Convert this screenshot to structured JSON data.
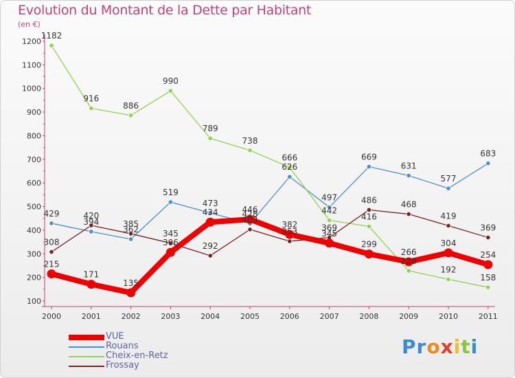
{
  "title": "Evolution du Montant de la Dette par Habitant",
  "unit_label": "(en €)",
  "logo": {
    "letters": [
      "P",
      "r",
      "o",
      "x",
      "i",
      "t",
      "i"
    ],
    "colors": [
      "#3a8ad4",
      "#3a8ad4",
      "#f08a1c",
      "#e0402a",
      "#f0c020",
      "#8cc63f",
      "#3a8ad4"
    ]
  },
  "chart_data": {
    "type": "line",
    "title": "Evolution du Montant de la Dette par Habitant",
    "ylabel": "(en €)",
    "x": [
      "2000",
      "2001",
      "2002",
      "2003",
      "2004",
      "2005",
      "2006",
      "2007",
      "2008",
      "2009",
      "2010",
      "2011"
    ],
    "ylim": [
      100,
      1200
    ],
    "yticks": [
      100,
      200,
      300,
      400,
      500,
      600,
      700,
      800,
      900,
      1000,
      1100,
      1200
    ],
    "grid": false,
    "legend_position": "bottom-left",
    "series": [
      {
        "name": "VUE",
        "color": "#ee0000",
        "values": [
          215,
          171,
          135,
          306,
          434,
          446,
          382,
          345,
          299,
          266,
          304,
          254
        ]
      },
      {
        "name": "Rouans",
        "color": "#4d8ec9",
        "values": [
          429,
          394,
          362,
          519,
          473,
          428,
          626,
          497,
          669,
          631,
          577,
          683
        ]
      },
      {
        "name": "Cheix-en-Retz",
        "color": "#8fd44a",
        "values": [
          1182,
          916,
          886,
          990,
          789,
          738,
          666,
          442,
          416,
          228,
          192,
          158
        ]
      },
      {
        "name": "Frossay",
        "color": "#7b2020",
        "values": [
          308,
          420,
          385,
          345,
          292,
          403,
          353,
          369,
          486,
          468,
          419,
          369
        ]
      }
    ]
  }
}
